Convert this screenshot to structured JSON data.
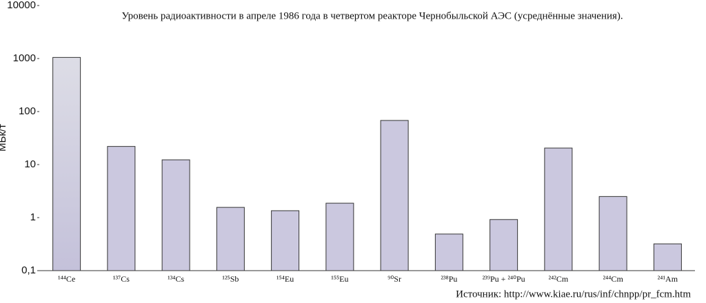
{
  "chart_data": {
    "type": "bar",
    "title": "Уровень радиоактивности в апреле 1986 года в четвертом реакторе Чернобыльской АЭС (усреднённые значения).",
    "y_label": "МБк/т",
    "source": "Источник: http://www.kiae.ru/rus/inf/chnpp/pr_fcm.htm",
    "categories": [
      "¹⁴⁴Ce",
      "¹³⁷Cs",
      "¹³⁴Cs",
      "¹²⁵Sb",
      "¹⁵⁴Eu",
      "¹⁵⁵Eu",
      "⁹⁰Sr",
      "²³⁸Pu",
      "²³⁹Pu + ²⁴⁰Pu",
      "²⁴²Cm",
      "²⁴⁴Cm",
      "²⁴¹Am"
    ],
    "values": [
      1050,
      22,
      12.3,
      1.56,
      1.35,
      1.87,
      68,
      0.49,
      0.92,
      20.5,
      2.5,
      0.32
    ],
    "color": "#cbc8df",
    "log_scale": true,
    "ylim": [
      0.1,
      10000
    ],
    "yticks": [
      {
        "value": 0.1,
        "label": "0,1"
      },
      1,
      10,
      100,
      1000,
      10000
    ],
    "grid": false
  }
}
